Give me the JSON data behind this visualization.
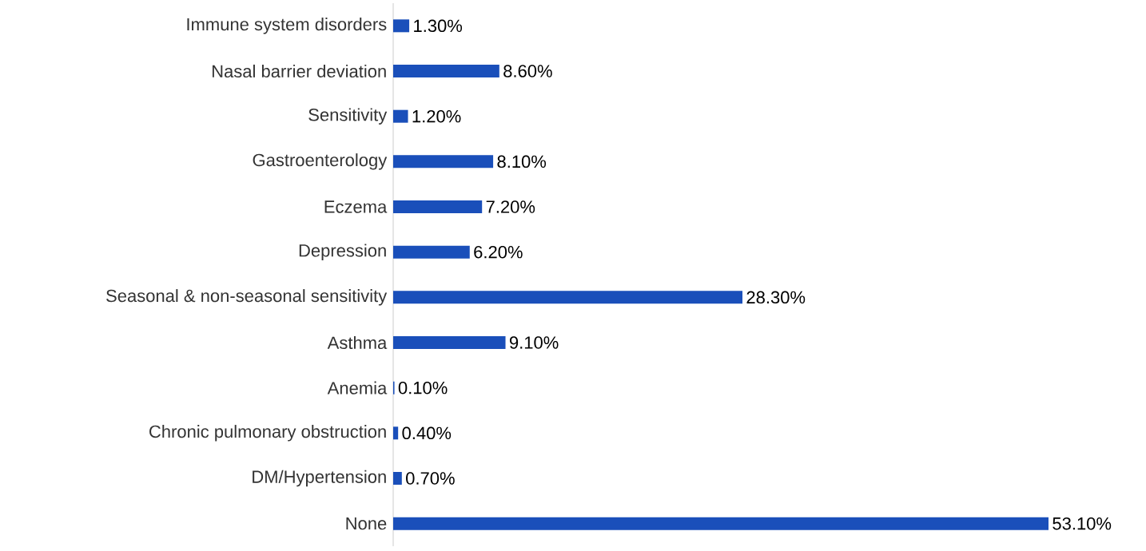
{
  "chart_data": {
    "type": "bar",
    "orientation": "horizontal",
    "categories": [
      "Immune system disorders",
      "Nasal barrier deviation",
      "Sensitivity",
      "Gastroenterology",
      "Eczema",
      "Depression",
      "Seasonal & non-seasonal sensitivity",
      "Asthma",
      "Anemia",
      "Chronic pulmonary obstruction",
      "DM/Hypertension",
      "None"
    ],
    "values": [
      1.3,
      8.6,
      1.2,
      8.1,
      7.2,
      6.2,
      28.3,
      9.1,
      0.1,
      0.4,
      0.7,
      53.1
    ],
    "value_labels": [
      "1.30%",
      "8.60%",
      "1.20%",
      "8.10%",
      "7.20%",
      "6.20%",
      "28.30%",
      "9.10%",
      "0.10%",
      "0.40%",
      "0.70%",
      "53.10%"
    ],
    "color": "#1a4fba",
    "tick_labels": "y"
  }
}
